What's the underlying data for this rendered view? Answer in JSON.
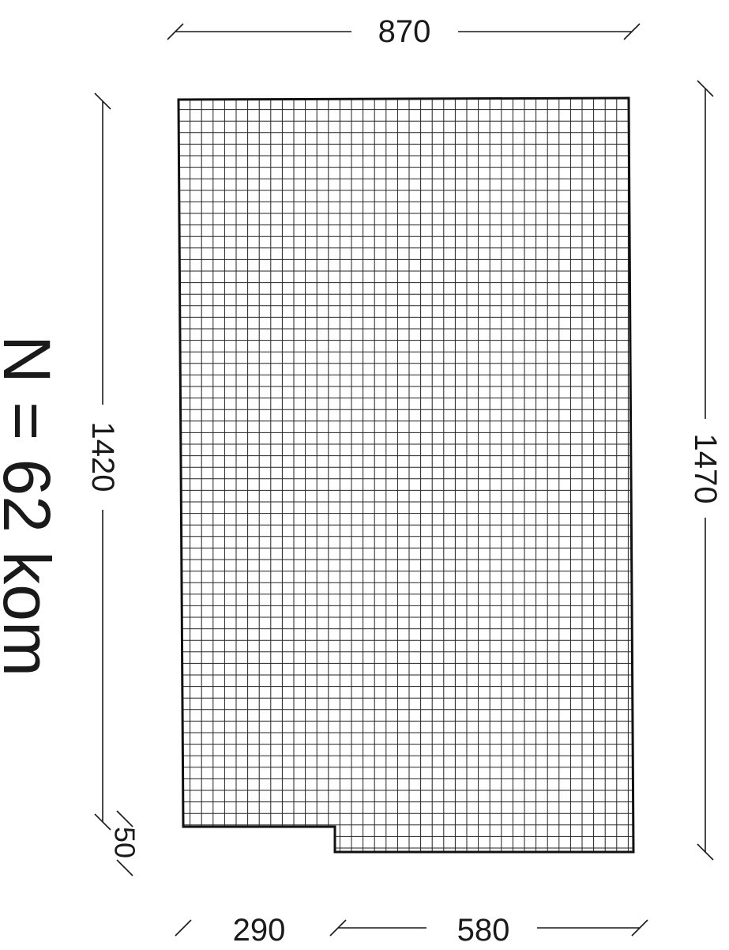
{
  "dimensions": {
    "top_width": "870",
    "left_height": "1420",
    "right_height": "1470",
    "notch_height": "50",
    "bottom_left_width": "290",
    "bottom_right_width": "580"
  },
  "count_label": "N = 62 kom",
  "colors": {
    "line": "#1a1a1a",
    "background": "#ffffff"
  }
}
